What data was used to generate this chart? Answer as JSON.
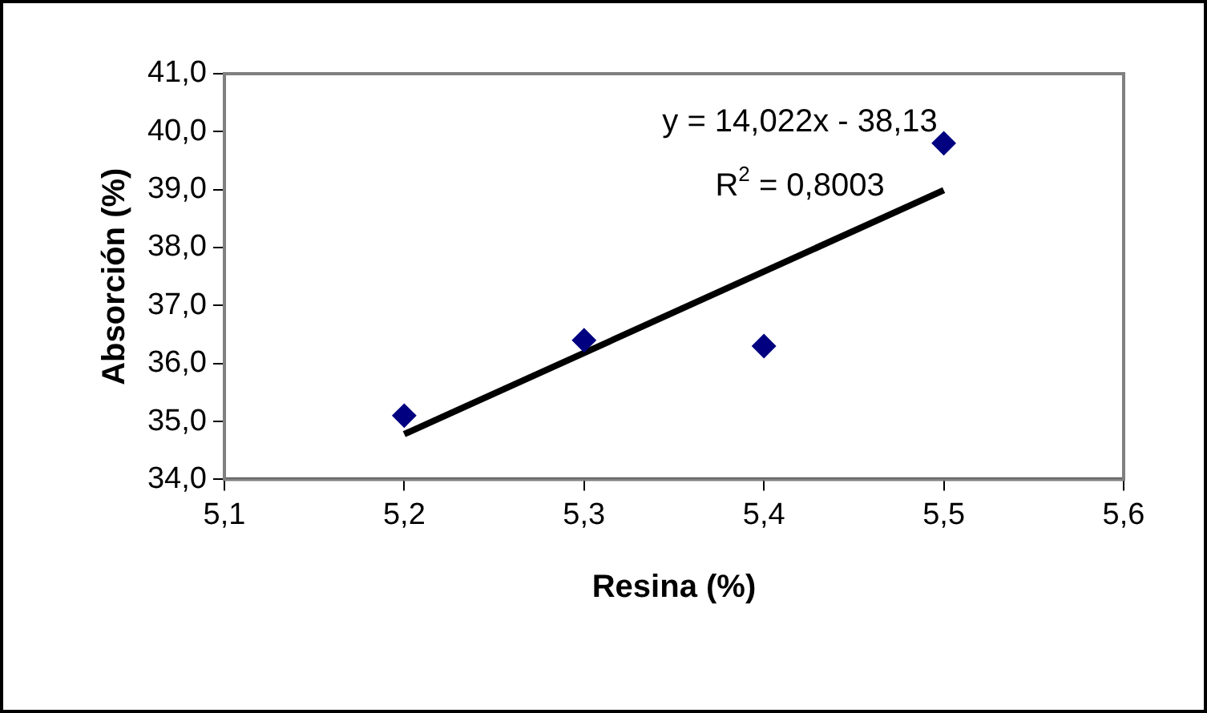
{
  "chart_data": {
    "type": "scatter",
    "xlabel": "Resina (%)",
    "ylabel": "Absorción (%)",
    "x": [
      5.2,
      5.3,
      5.4,
      5.5
    ],
    "series": [
      {
        "type": "scatter",
        "color": "#000080",
        "values": [
          35.1,
          36.4,
          36.3,
          39.8
        ],
        "marker": "diamond"
      },
      {
        "type": "line",
        "color": "#000000",
        "x": [
          5.2,
          5.5
        ],
        "values": [
          34.78,
          38.99
        ],
        "marker": "none",
        "line_style": "solid"
      }
    ],
    "xlim": [
      5.1,
      5.6
    ],
    "xticks": [
      {
        "value": 5.1,
        "label": "5,1"
      },
      {
        "value": 5.2,
        "label": "5,2"
      },
      {
        "value": 5.3,
        "label": "5,3"
      },
      {
        "value": 5.4,
        "label": "5,4"
      },
      {
        "value": 5.5,
        "label": "5,5"
      },
      {
        "value": 5.6,
        "label": "5,6"
      }
    ],
    "ylim": [
      34,
      41
    ],
    "yticks": [
      {
        "value": 34,
        "label": "34,0"
      },
      {
        "value": 35,
        "label": "35,0"
      },
      {
        "value": 36,
        "label": "36,0"
      },
      {
        "value": 37,
        "label": "37,0"
      },
      {
        "value": 38,
        "label": "38,0"
      },
      {
        "value": 39,
        "label": "39,0"
      },
      {
        "value": 40,
        "label": "40,0"
      },
      {
        "value": 41,
        "label": "41,0"
      }
    ],
    "grid": false,
    "legend": false,
    "annotations": [
      "y = 14,022x - 38,13",
      "R$^{2}$ = 0,8003"
    ]
  }
}
